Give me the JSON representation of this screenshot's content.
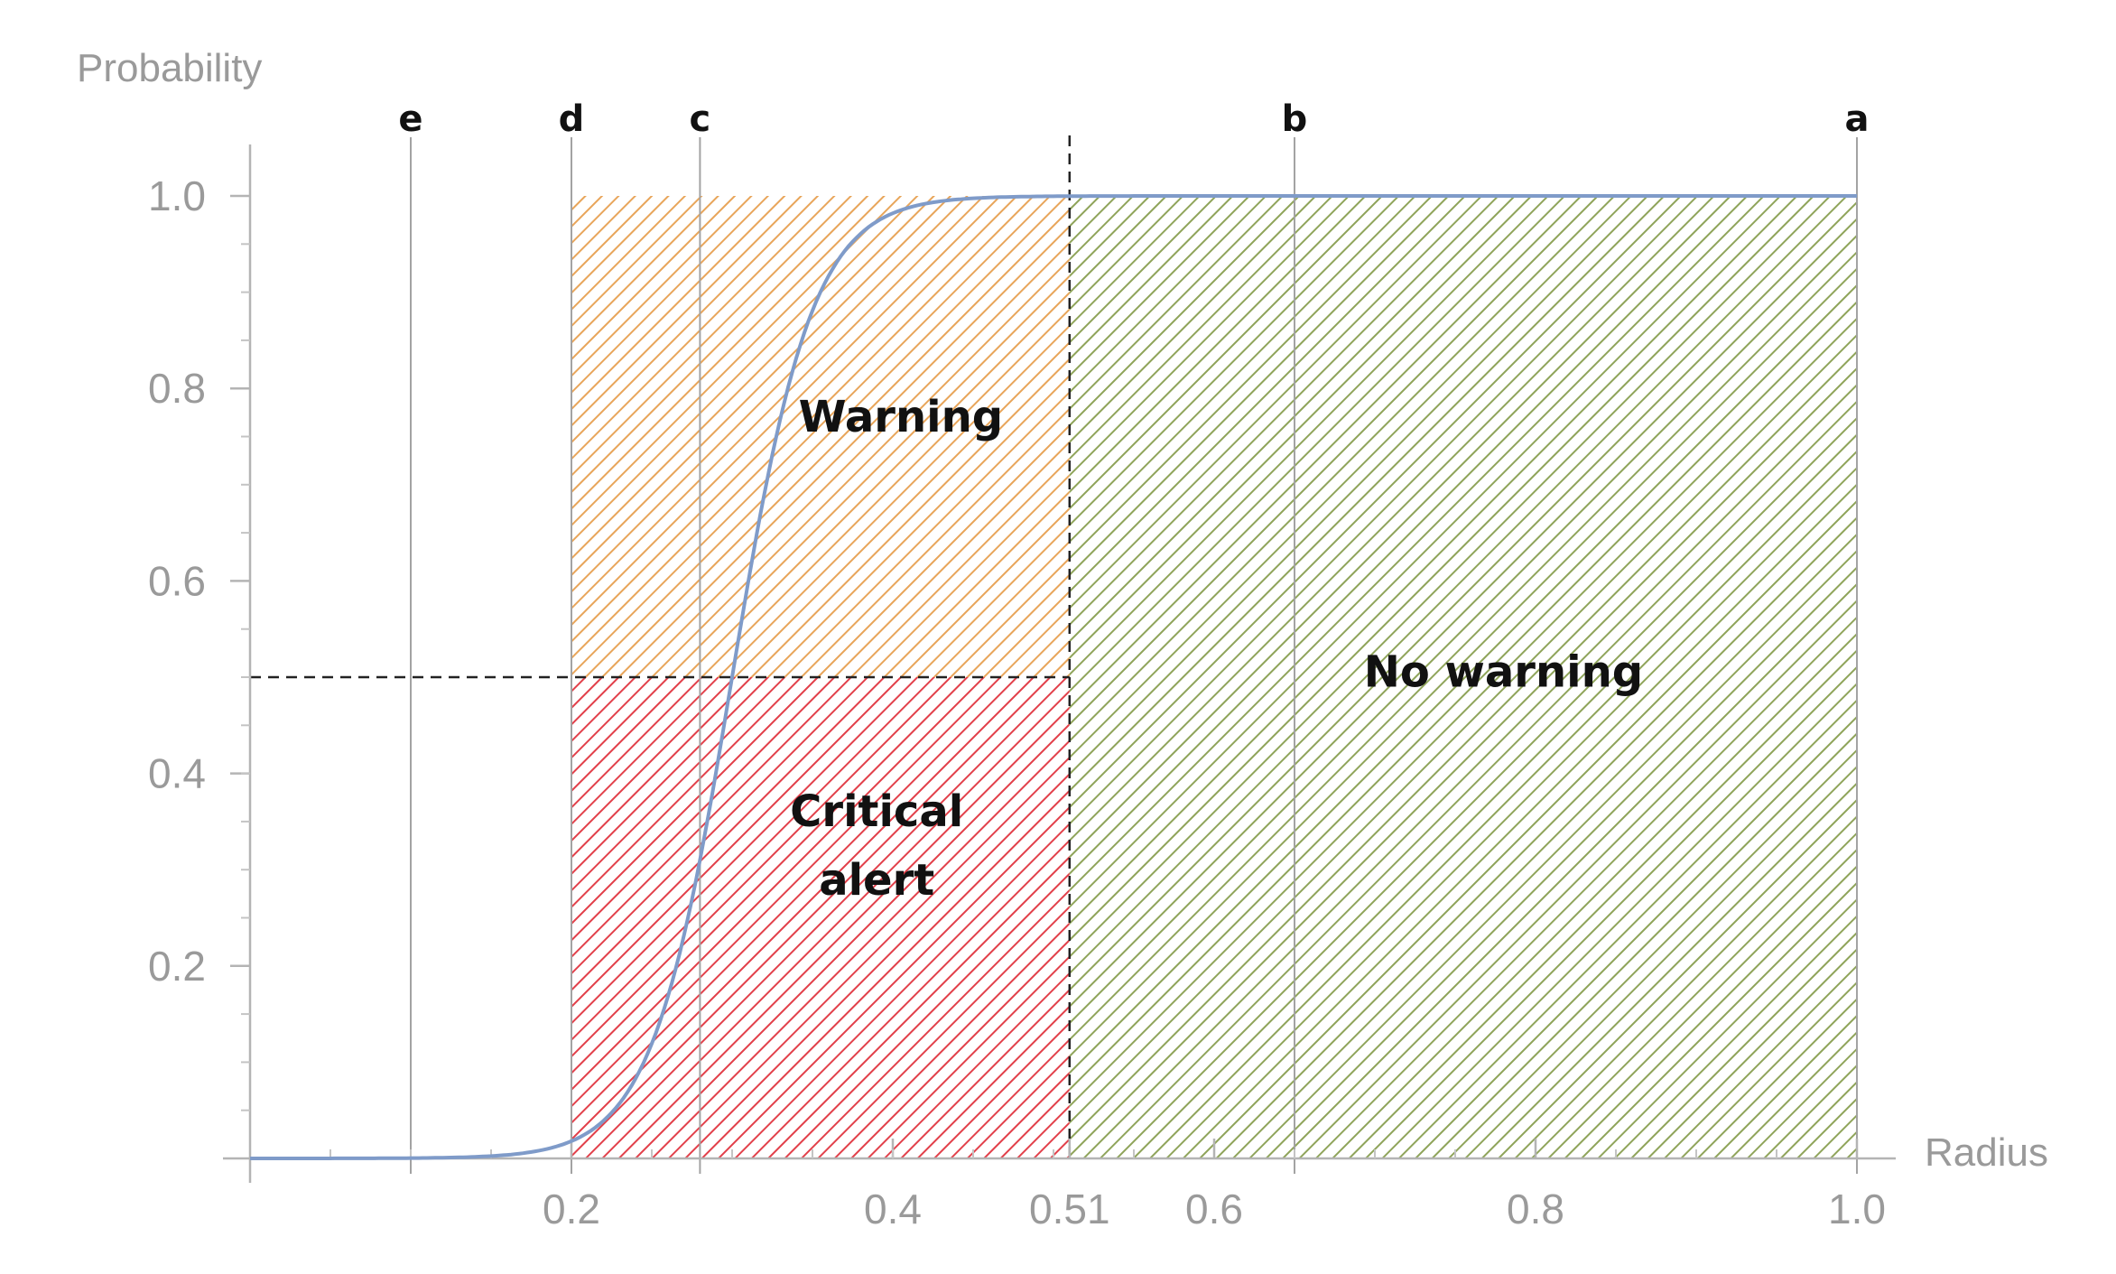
{
  "chart_data": {
    "type": "line",
    "xlabel": "Radius",
    "ylabel": "Probability",
    "xlim": [
      0,
      1.0
    ],
    "ylim": [
      0,
      1.0
    ],
    "x_ticks": [
      {
        "value": 0.2,
        "label": "0.2"
      },
      {
        "value": 0.4,
        "label": "0.4"
      },
      {
        "value": 0.51,
        "label": "0.51"
      },
      {
        "value": 0.6,
        "label": "0.6"
      },
      {
        "value": 0.8,
        "label": "0.8"
      },
      {
        "value": 1.0,
        "label": "1.0"
      }
    ],
    "y_ticks": [
      {
        "value": 0.2,
        "label": "0.2"
      },
      {
        "value": 0.4,
        "label": "0.4"
      },
      {
        "value": 0.6,
        "label": "0.6"
      },
      {
        "value": 0.8,
        "label": "0.8"
      },
      {
        "value": 1.0,
        "label": "1.0"
      }
    ],
    "curve": {
      "kind": "logistic",
      "midpoint": 0.3,
      "steepness": 40,
      "x": [
        0.0,
        0.1,
        0.2,
        0.22,
        0.24,
        0.26,
        0.28,
        0.3,
        0.32,
        0.34,
        0.36,
        0.38,
        0.4,
        0.45,
        0.51,
        0.6,
        0.8,
        1.0
      ],
      "y": [
        0.0,
        0.0,
        0.02,
        0.04,
        0.08,
        0.17,
        0.31,
        0.5,
        0.69,
        0.83,
        0.92,
        0.96,
        0.98,
        0.998,
        1.0,
        1.0,
        1.0,
        1.0
      ],
      "color": "#7f9bc9"
    },
    "markers": [
      {
        "label": "e",
        "x": 0.1
      },
      {
        "label": "d",
        "x": 0.2
      },
      {
        "label": "c",
        "x": 0.28
      },
      {
        "label": "b",
        "x": 0.65
      },
      {
        "label": "a",
        "x": 1.0
      }
    ],
    "threshold_x": 0.51,
    "threshold_y": 0.5,
    "regions": [
      {
        "label": "Warning",
        "x": [
          0.2,
          0.51
        ],
        "y": [
          0.5,
          1.0
        ],
        "color": "#e8a55a"
      },
      {
        "label": "Critical alert",
        "x": [
          0.2,
          0.51
        ],
        "y": [
          0.0,
          0.5
        ],
        "color": "#e2404a"
      },
      {
        "label": "No warning",
        "x": [
          0.51,
          1.0
        ],
        "y": [
          0.0,
          1.0
        ],
        "color": "#8fa45a"
      }
    ],
    "grid": false
  }
}
